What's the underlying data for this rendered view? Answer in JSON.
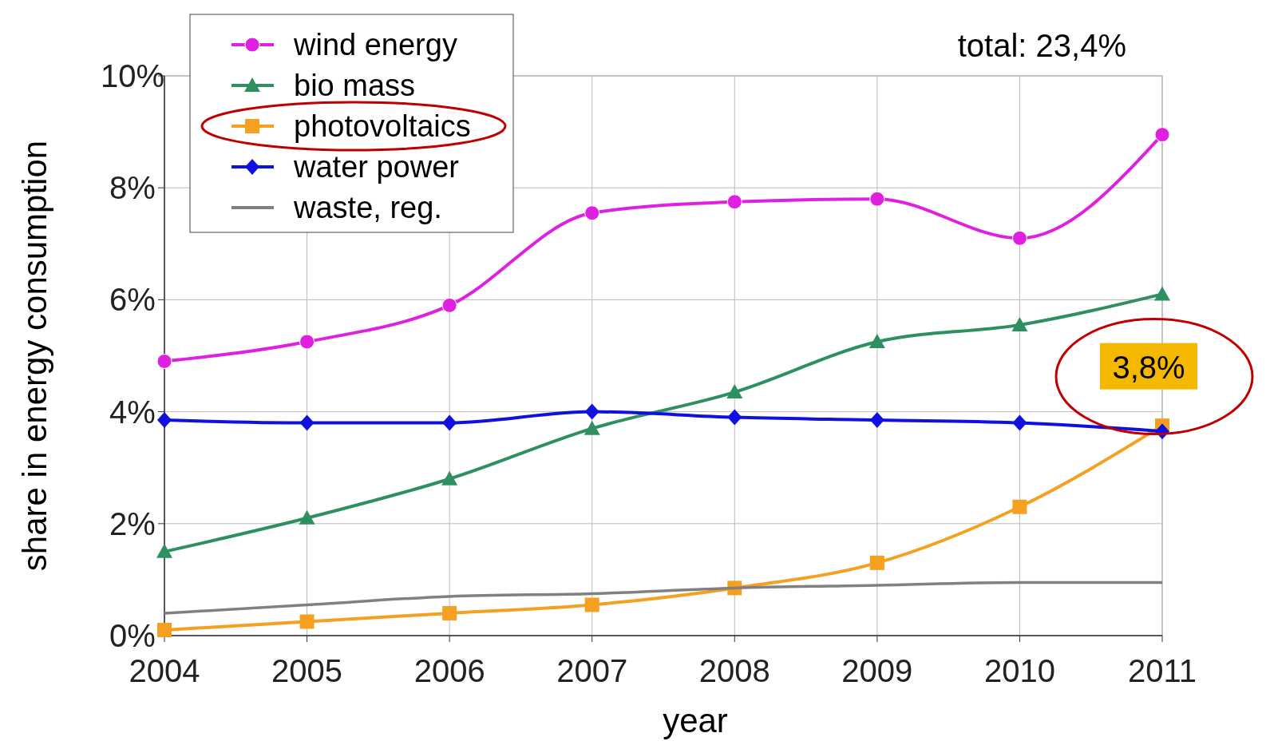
{
  "chart_data": {
    "type": "line",
    "xlabel": "year",
    "ylabel": "share in energy consumption",
    "x": [
      2004,
      2005,
      2006,
      2007,
      2008,
      2009,
      2010,
      2011
    ],
    "xlim": [
      2004,
      2011
    ],
    "xticks": [
      2004,
      2005,
      2006,
      2007,
      2008,
      2009,
      2010,
      2011
    ],
    "ylim": [
      0,
      10
    ],
    "yticks": [
      {
        "value": 0,
        "label": "0%"
      },
      {
        "value": 2,
        "label": "2%"
      },
      {
        "value": 4,
        "label": "4%"
      },
      {
        "value": 6,
        "label": "6%"
      },
      {
        "value": 8,
        "label": "8%"
      },
      {
        "value": 10,
        "label": "10%"
      }
    ],
    "grid": true,
    "legend": "top left",
    "line_style": "solid",
    "series": [
      {
        "name": "wind energy",
        "color": "#e020e0",
        "marker": "circle",
        "values": [
          4.9,
          5.25,
          5.9,
          7.55,
          7.75,
          7.8,
          7.1,
          8.95
        ]
      },
      {
        "name": "bio mass",
        "color": "#2e9060",
        "marker": "triangle",
        "values": [
          1.5,
          2.1,
          2.8,
          3.7,
          4.35,
          5.25,
          5.55,
          6.1
        ]
      },
      {
        "name": "photovoltaics",
        "color": "#f5a020",
        "marker": "square",
        "values": [
          0.1,
          0.25,
          0.4,
          0.55,
          0.85,
          1.3,
          2.3,
          3.75
        ]
      },
      {
        "name": "water power",
        "color": "#1010e0",
        "marker": "diamond",
        "values": [
          3.85,
          3.8,
          3.8,
          4.0,
          3.9,
          3.85,
          3.8,
          3.65
        ]
      },
      {
        "name": "waste, reg.",
        "color": "#808080",
        "marker": "none",
        "values": [
          0.4,
          0.55,
          0.7,
          0.75,
          0.85,
          0.9,
          0.95,
          0.95
        ]
      }
    ],
    "annotations": [
      "total: 23,4%",
      {
        "text": "3,8%",
        "x": 2011,
        "y": 3.8
      }
    ]
  }
}
